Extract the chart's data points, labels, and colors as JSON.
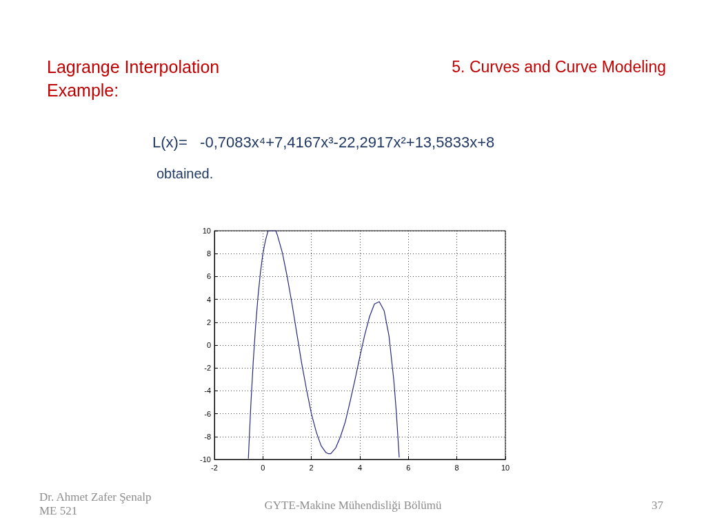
{
  "chart_data": {
    "type": "line",
    "title": "Lagrange Interpolation Example:",
    "subtitle": "5. Curves and Curve Modeling",
    "annotations": [
      "L(x)=   -0,7083x⁴+7,4167x³-22,2917x²+13,5833x+8",
      "obtained.",
      "Dr. Ahmet Zafer Şenalp",
      "ME 521",
      "GYTE-Makine Mühendisliği Bölümü",
      "37"
    ],
    "x": [
      -0.6,
      -0.5,
      -0.4,
      -0.3,
      -0.2,
      -0.1,
      0,
      0.1,
      0.2,
      0.22,
      0.53,
      0.6,
      0.8,
      1,
      1.2,
      1.4,
      1.6,
      1.8,
      2,
      2.2,
      2.4,
      2.6,
      2.7,
      2.8,
      3,
      3.2,
      3.4,
      3.6,
      3.8,
      4,
      4.2,
      4.4,
      4.6,
      4.8,
      5,
      5.2,
      5.4,
      5.5,
      5.6,
      5.62
    ],
    "values": [
      -9.9,
      -5.3,
      -1.5,
      1.7,
      4.3,
      6.4,
      8,
      9.1,
      9.9,
      10,
      10,
      9.6,
      8.1,
      6,
      3.6,
      1,
      -1.6,
      -3.9,
      -6,
      -7.6,
      -8.8,
      -9.4,
      -9.5,
      -9.5,
      -9,
      -8,
      -6.7,
      -4.9,
      -3,
      -1,
      0.9,
      2.5,
      3.6,
      3.8,
      3,
      0.8,
      -3.1,
      -5.8,
      -9.1,
      -9.8
    ],
    "color": "#262680",
    "xlim": [
      -2,
      10
    ],
    "xticks": [
      -2,
      0,
      2,
      4,
      6,
      8,
      10
    ],
    "ylim": [
      -10,
      10
    ],
    "yticks": [
      -10,
      -8,
      -6,
      -4,
      -2,
      0,
      2,
      4,
      6,
      8,
      10
    ],
    "grid": true,
    "marker": "none",
    "line_style": "solid"
  }
}
